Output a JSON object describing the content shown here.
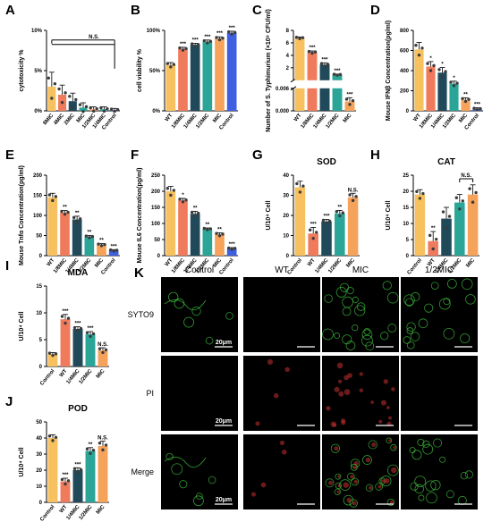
{
  "palette": {
    "yellow": "#f7c160",
    "salmon": "#ef7b5c",
    "navy": "#20495a",
    "teal": "#2aa597",
    "orange": "#f5a25b",
    "blue": "#3d5fe0",
    "dot": "#3b3b3b"
  },
  "chart_data": [
    {
      "panel": "A",
      "type": "bar",
      "title": "",
      "ylabel": "cytotoxicity %",
      "categories": [
        "8MIC",
        "4MIC",
        "2MIC",
        "MIC",
        "1/2MIC",
        "1/4MIC",
        "Control"
      ],
      "colors": [
        "yellow",
        "salmon",
        "navy",
        "teal",
        "orange",
        "teal",
        "blue"
      ],
      "values": [
        3.0,
        2.0,
        1.2,
        0.4,
        0.2,
        0.2,
        0.1
      ],
      "errors": [
        1.8,
        1.2,
        1.0,
        0.6,
        0.3,
        0.3,
        0.2
      ],
      "sig": [
        "",
        "",
        "",
        "",
        "",
        "",
        ""
      ],
      "ylim": [
        0,
        10
      ],
      "yticks": [
        0,
        5,
        10
      ],
      "tick_labels": [
        "0%",
        "5%",
        "10%"
      ],
      "bracket": {
        "label": "N.S.",
        "from": 0,
        "to": 6
      }
    },
    {
      "panel": "B",
      "type": "bar",
      "title": "",
      "ylabel": "cell viability %",
      "categories": [
        "WT",
        "1/8MIC",
        "1/4MIC",
        "1/2MIC",
        "MIC",
        "Control"
      ],
      "colors": [
        "yellow",
        "salmon",
        "navy",
        "teal",
        "orange",
        "blue"
      ],
      "values": [
        57,
        77,
        82,
        86,
        90,
        97
      ],
      "errors": [
        3,
        2,
        2,
        2,
        2,
        2
      ],
      "sig": [
        "",
        "***",
        "***",
        "***",
        "***",
        "***"
      ],
      "ylim": [
        0,
        100
      ],
      "yticks": [
        0,
        50,
        100
      ],
      "tick_labels": [
        "0%",
        "50%",
        "100%"
      ]
    },
    {
      "panel": "C",
      "type": "bar",
      "title": "",
      "ylabel": "Number of S. Typhimurium (×10⁸ CFU/ml)",
      "categories": [
        "WT",
        "1/8MIC",
        "1/4MIC",
        "1/2MIC",
        "MIC"
      ],
      "colors": [
        "yellow",
        "salmon",
        "navy",
        "teal",
        "orange"
      ],
      "values": [
        6.8,
        4.5,
        2.5,
        0.9,
        0.0025
      ],
      "errors": [
        0.15,
        0.2,
        0.3,
        0.1,
        0.001
      ],
      "sig": [
        "",
        "***",
        "***",
        "***",
        "***"
      ],
      "broken": true,
      "upper_range": [
        0,
        8
      ],
      "upper_ticks": [
        0,
        2,
        4,
        6,
        8
      ],
      "lower_range": [
        0,
        0.006
      ],
      "lower_ticks": [
        0,
        0.006
      ],
      "lower_tick_labels": [
        "0.000",
        "0.006"
      ]
    },
    {
      "panel": "D",
      "type": "bar",
      "title": "",
      "ylabel": "Mouse IFNβ Concentration(pg/ml)",
      "categories": [
        "WT",
        "1/8MIC",
        "1/4MIC",
        "1/2MIC",
        "MIC",
        "Control"
      ],
      "colors": [
        "yellow",
        "salmon",
        "navy",
        "teal",
        "orange",
        "blue"
      ],
      "values": [
        610,
        440,
        380,
        270,
        110,
        20
      ],
      "errors": [
        70,
        50,
        50,
        25,
        20,
        10
      ],
      "sig": [
        "",
        "*",
        "*",
        "*",
        "**",
        "***"
      ],
      "ylim": [
        0,
        800
      ],
      "yticks": [
        0,
        200,
        400,
        600,
        800
      ]
    },
    {
      "panel": "E",
      "type": "bar",
      "title": "",
      "ylabel": "Mouse Tnfα Concentration(pg/ml)",
      "categories": [
        "WT",
        "1/8MIC",
        "1/4MIC",
        "1/2MIC",
        "MIC",
        "Control"
      ],
      "colors": [
        "yellow",
        "salmon",
        "navy",
        "teal",
        "orange",
        "blue"
      ],
      "values": [
        145,
        107,
        90,
        47,
        27,
        13
      ],
      "errors": [
        10,
        5,
        8,
        3,
        3,
        2
      ],
      "sig": [
        "",
        "**",
        "**",
        "**",
        "**",
        "***"
      ],
      "ylim": [
        0,
        200
      ],
      "yticks": [
        0,
        50,
        100,
        150,
        200
      ]
    },
    {
      "panel": "F",
      "type": "bar",
      "title": "",
      "ylabel": "Mouse IL6 Concentration(pg/ml)",
      "categories": [
        "WT",
        "1/8MIC",
        "1/4MIC",
        "1/2MIC",
        "MIC",
        "Control"
      ],
      "colors": [
        "yellow",
        "salmon",
        "navy",
        "teal",
        "orange",
        "blue"
      ],
      "values": [
        200,
        172,
        130,
        83,
        66,
        22
      ],
      "errors": [
        15,
        6,
        8,
        3,
        5,
        3
      ],
      "sig": [
        "",
        "*",
        "**",
        "**",
        "**",
        "***"
      ],
      "ylim": [
        0,
        250
      ],
      "yticks": [
        0,
        50,
        100,
        150,
        200,
        250
      ]
    },
    {
      "panel": "G",
      "type": "bar",
      "title": "SOD",
      "ylabel": "U/10⁴ Cell",
      "categories": [
        "Control",
        "WT",
        "1/4MIC",
        "1/2MIC",
        "MIC"
      ],
      "colors": [
        "yellow",
        "salmon",
        "navy",
        "teal",
        "orange"
      ],
      "values": [
        34,
        11,
        17,
        21,
        29
      ],
      "errors": [
        3,
        3,
        1,
        1.5,
        2
      ],
      "sig": [
        "",
        "***",
        "***",
        "**",
        "N.S."
      ],
      "ylim": [
        0,
        40
      ],
      "yticks": [
        0,
        10,
        20,
        30,
        40
      ]
    },
    {
      "panel": "H",
      "type": "bar",
      "title": "CAT",
      "ylabel": "U/10⁴ Cell",
      "categories": [
        "Control",
        "WT",
        "1/4MIC",
        "1/2MIC",
        "MIC"
      ],
      "colors": [
        "yellow",
        "salmon",
        "navy",
        "teal",
        "orange"
      ],
      "values": [
        19,
        4.5,
        11.5,
        16.5,
        19
      ],
      "errors": [
        1.5,
        3,
        3.5,
        2.5,
        3
      ],
      "sig": [
        "",
        "**",
        "",
        "",
        ""
      ],
      "ylim": [
        0,
        25
      ],
      "yticks": [
        0,
        5,
        10,
        15,
        20,
        25
      ],
      "bracket": {
        "label": "N.S.",
        "from": 3,
        "to": 4
      }
    },
    {
      "panel": "I",
      "type": "bar",
      "title": "MDA",
      "ylabel": "U/10⁴ Cell",
      "categories": [
        "Control",
        "WT",
        "1/4MIC",
        "1/2MIC",
        "MIC"
      ],
      "colors": [
        "yellow",
        "salmon",
        "navy",
        "teal",
        "orange"
      ],
      "values": [
        2.3,
        8.8,
        7.0,
        6.0,
        3.0
      ],
      "errors": [
        0.3,
        0.9,
        0.4,
        0.5,
        0.5
      ],
      "sig": [
        "",
        "***",
        "***",
        "***",
        "N.S."
      ],
      "ylim": [
        0,
        15
      ],
      "yticks": [
        0,
        5,
        10,
        15
      ]
    },
    {
      "panel": "J",
      "type": "bar",
      "title": "POD",
      "ylabel": "U/10⁴ Cell",
      "categories": [
        "Control",
        "WT",
        "1/4MIC",
        "1/2MIC",
        "MIC"
      ],
      "colors": [
        "yellow",
        "salmon",
        "navy",
        "teal",
        "orange"
      ],
      "values": [
        40,
        13,
        20,
        32,
        35
      ],
      "errors": [
        2,
        2,
        1.5,
        2,
        3
      ],
      "sig": [
        "",
        "***",
        "***",
        "**",
        "N.S."
      ],
      "ylim": [
        0,
        50
      ],
      "yticks": [
        0,
        10,
        20,
        30,
        40,
        50
      ]
    }
  ],
  "micrographs": {
    "panel_label": "K",
    "columns": [
      "Control",
      "WT",
      "MIC",
      "1/2MIC"
    ],
    "rows": [
      "SYTO9",
      "PI",
      "Merge"
    ],
    "scale_bar": "20μm"
  }
}
